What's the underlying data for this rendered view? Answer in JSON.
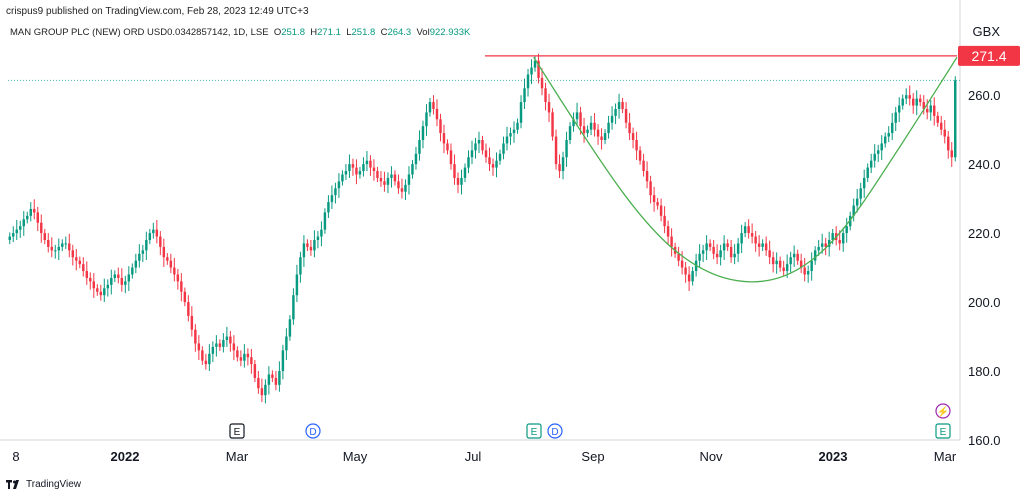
{
  "header": {
    "publisher": "crispus9 published on TradingView.com, Feb 28, 2023 12:49 UTC+3"
  },
  "symbol": {
    "name": "MAN GROUP PLC (NEW) ORD USD0.0342857142, 1D, LSE",
    "o_label": "O",
    "o": "251.8",
    "h_label": "H",
    "h": "271.1",
    "l_label": "L",
    "l": "251.8",
    "c_label": "C",
    "c": "264.3",
    "vol_label": "Vol",
    "vol": "922.933K"
  },
  "currency": "GBX",
  "footer": {
    "brand": "TradingView"
  },
  "colors": {
    "up": "#089981",
    "down": "#f23645",
    "resistance": "#f23645",
    "cup": "#4caf50",
    "last_price_line": "#26a69a",
    "event_d": "#2962ff",
    "event_e": "#089981",
    "event_split": "#9c27b0"
  },
  "chart_data": {
    "type": "candlestick",
    "y_range": [
      160,
      276
    ],
    "y_ticks": [
      "160.0",
      "180.0",
      "200.0",
      "220.0",
      "240.0",
      "260.0"
    ],
    "x_ticks": [
      "8",
      "2022",
      "Mar",
      "May",
      "Jul",
      "Sep",
      "Nov",
      "2023",
      "Mar"
    ],
    "resistance": {
      "value": 271.4,
      "label": "271.4"
    },
    "last_close": 264.3,
    "event_markers": [
      {
        "label": "E",
        "date": "Mar",
        "kind": "earnings_past"
      },
      {
        "label": "D",
        "date": "Apr",
        "kind": "dividend"
      },
      {
        "label": "E",
        "date": "Jul",
        "kind": "earnings"
      },
      {
        "label": "D",
        "date": "Aug",
        "kind": "dividend"
      },
      {
        "label": "E",
        "date": "Mar",
        "kind": "earnings_upcoming"
      },
      {
        "label": "⚡",
        "date": "Mar",
        "kind": "split"
      }
    ],
    "cup_pattern": [
      {
        "t": 0.554,
        "v": 271
      },
      {
        "t": 0.62,
        "v": 242
      },
      {
        "t": 0.68,
        "v": 220
      },
      {
        "t": 0.73,
        "v": 209
      },
      {
        "t": 0.78,
        "v": 205
      },
      {
        "t": 0.83,
        "v": 208
      },
      {
        "t": 0.88,
        "v": 220
      },
      {
        "t": 0.94,
        "v": 245
      },
      {
        "t": 1.0,
        "v": 271
      }
    ],
    "closes": [
      219,
      220,
      221,
      222,
      224,
      225,
      227,
      226,
      223,
      220,
      218,
      216,
      215,
      215,
      216,
      217,
      217,
      215,
      213,
      212,
      211,
      209,
      207,
      206,
      204,
      203,
      202,
      204,
      205,
      207,
      208,
      207,
      205,
      206,
      208,
      210,
      212,
      214,
      215,
      218,
      220,
      221,
      219,
      216,
      213,
      212,
      210,
      208,
      206,
      203,
      200,
      196,
      192,
      188,
      186,
      183,
      182,
      185,
      187,
      188,
      187,
      189,
      190,
      188,
      186,
      184,
      183,
      185,
      184,
      182,
      178,
      175,
      173,
      176,
      179,
      178,
      176,
      180,
      186,
      190,
      195,
      202,
      208,
      213,
      217,
      216,
      215,
      218,
      219,
      221,
      226,
      229,
      231,
      233,
      235,
      237,
      238,
      240,
      239,
      237,
      238,
      240,
      241,
      239,
      238,
      236,
      235,
      234,
      236,
      237,
      235,
      233,
      232,
      234,
      237,
      240,
      243,
      247,
      251,
      255,
      258,
      256,
      253,
      249,
      246,
      244,
      240,
      236,
      234,
      236,
      239,
      242,
      244,
      246,
      247,
      244,
      242,
      240,
      239,
      241,
      243,
      246,
      248,
      249,
      250,
      252,
      258,
      262,
      266,
      268,
      270,
      265,
      262,
      258,
      255,
      248,
      240,
      238,
      242,
      247,
      251,
      253,
      255,
      251,
      249,
      250,
      252,
      250,
      248,
      247,
      249,
      252,
      254,
      256,
      258,
      256,
      252,
      249,
      247,
      244,
      241,
      238,
      235,
      231,
      229,
      228,
      225,
      222,
      219,
      216,
      214,
      212,
      210,
      208,
      206,
      209,
      212,
      214,
      215,
      217,
      216,
      214,
      213,
      215,
      217,
      216,
      213,
      214,
      217,
      220,
      222,
      220,
      219,
      217,
      216,
      217,
      215,
      213,
      211,
      212,
      210,
      209,
      211,
      213,
      214,
      212,
      210,
      208,
      209,
      212,
      215,
      216,
      217,
      216,
      218,
      220,
      218,
      217,
      220,
      222,
      225,
      228,
      230,
      233,
      236,
      239,
      241,
      243,
      244,
      246,
      248,
      249,
      252,
      255,
      257,
      259,
      260,
      259,
      257,
      259,
      258,
      256,
      255,
      257,
      254,
      252,
      250,
      248,
      244,
      242,
      264.3
    ]
  }
}
